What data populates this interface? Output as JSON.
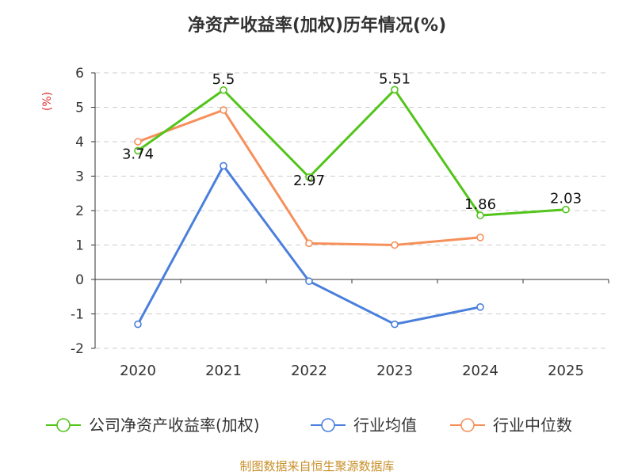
{
  "chart_data": {
    "type": "line",
    "title": "净资产收益率(加权)历年情况(%)",
    "ylabel": "(%)",
    "xlabel": "",
    "categories": [
      "2020",
      "2021",
      "2022",
      "2023",
      "2024",
      "2025"
    ],
    "ylim": [
      -2,
      6
    ],
    "yticks": [
      -2,
      -1,
      0,
      1,
      2,
      3,
      4,
      5,
      6
    ],
    "grid": true,
    "legend_placement": "bottom",
    "series": [
      {
        "name": "公司净资产收益率(加权)",
        "color": "#52c41a",
        "values": [
          3.74,
          5.5,
          2.97,
          5.51,
          1.86,
          2.03
        ],
        "labels": [
          "3.74",
          "5.5",
          "2.97",
          "5.51",
          "1.86",
          "2.03"
        ]
      },
      {
        "name": "行业均值",
        "color": "#4a7fdc",
        "values": [
          -1.3,
          3.3,
          -0.05,
          -1.3,
          -0.8,
          null
        ]
      },
      {
        "name": "行业中位数",
        "color": "#f6905a",
        "values": [
          4.0,
          4.92,
          1.05,
          1.0,
          1.22,
          null
        ]
      }
    ]
  },
  "source": "制图数据来自恒生聚源数据库",
  "colors": {
    "axis_label": "#e03030",
    "grid": "#cccccc",
    "text": "#333333"
  }
}
